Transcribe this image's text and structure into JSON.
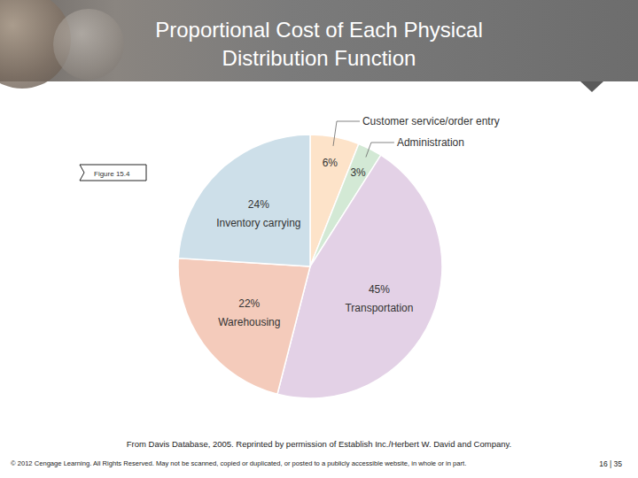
{
  "chart_data": {
    "type": "pie",
    "title": "Proportional Cost of Each Physical Distribution Function",
    "categories": [
      "Customer service/order entry",
      "Administration",
      "Transportation",
      "Warehousing",
      "Inventory carrying"
    ],
    "values": [
      6,
      3,
      45,
      22,
      24
    ],
    "value_labels": [
      "6%",
      "3%",
      "45%",
      "22%",
      "24%"
    ],
    "colors": [
      "#fde3c9",
      "#d3e9d5",
      "#e3d1e6",
      "#f4cbbb",
      "#cddfe9"
    ],
    "data_labels": true
  },
  "slide": {
    "figure_label": "Figure 15.4",
    "source": "From Davis Database, 2005. Reprinted by permission of Establish Inc./Herbert W. David and Company.",
    "copyright": "© 2012 Cengage Learning. All Rights Reserved. May not be scanned, copied or duplicated, or posted to a publicly accessible website, in whole or in part.",
    "page": "16 | 35"
  }
}
